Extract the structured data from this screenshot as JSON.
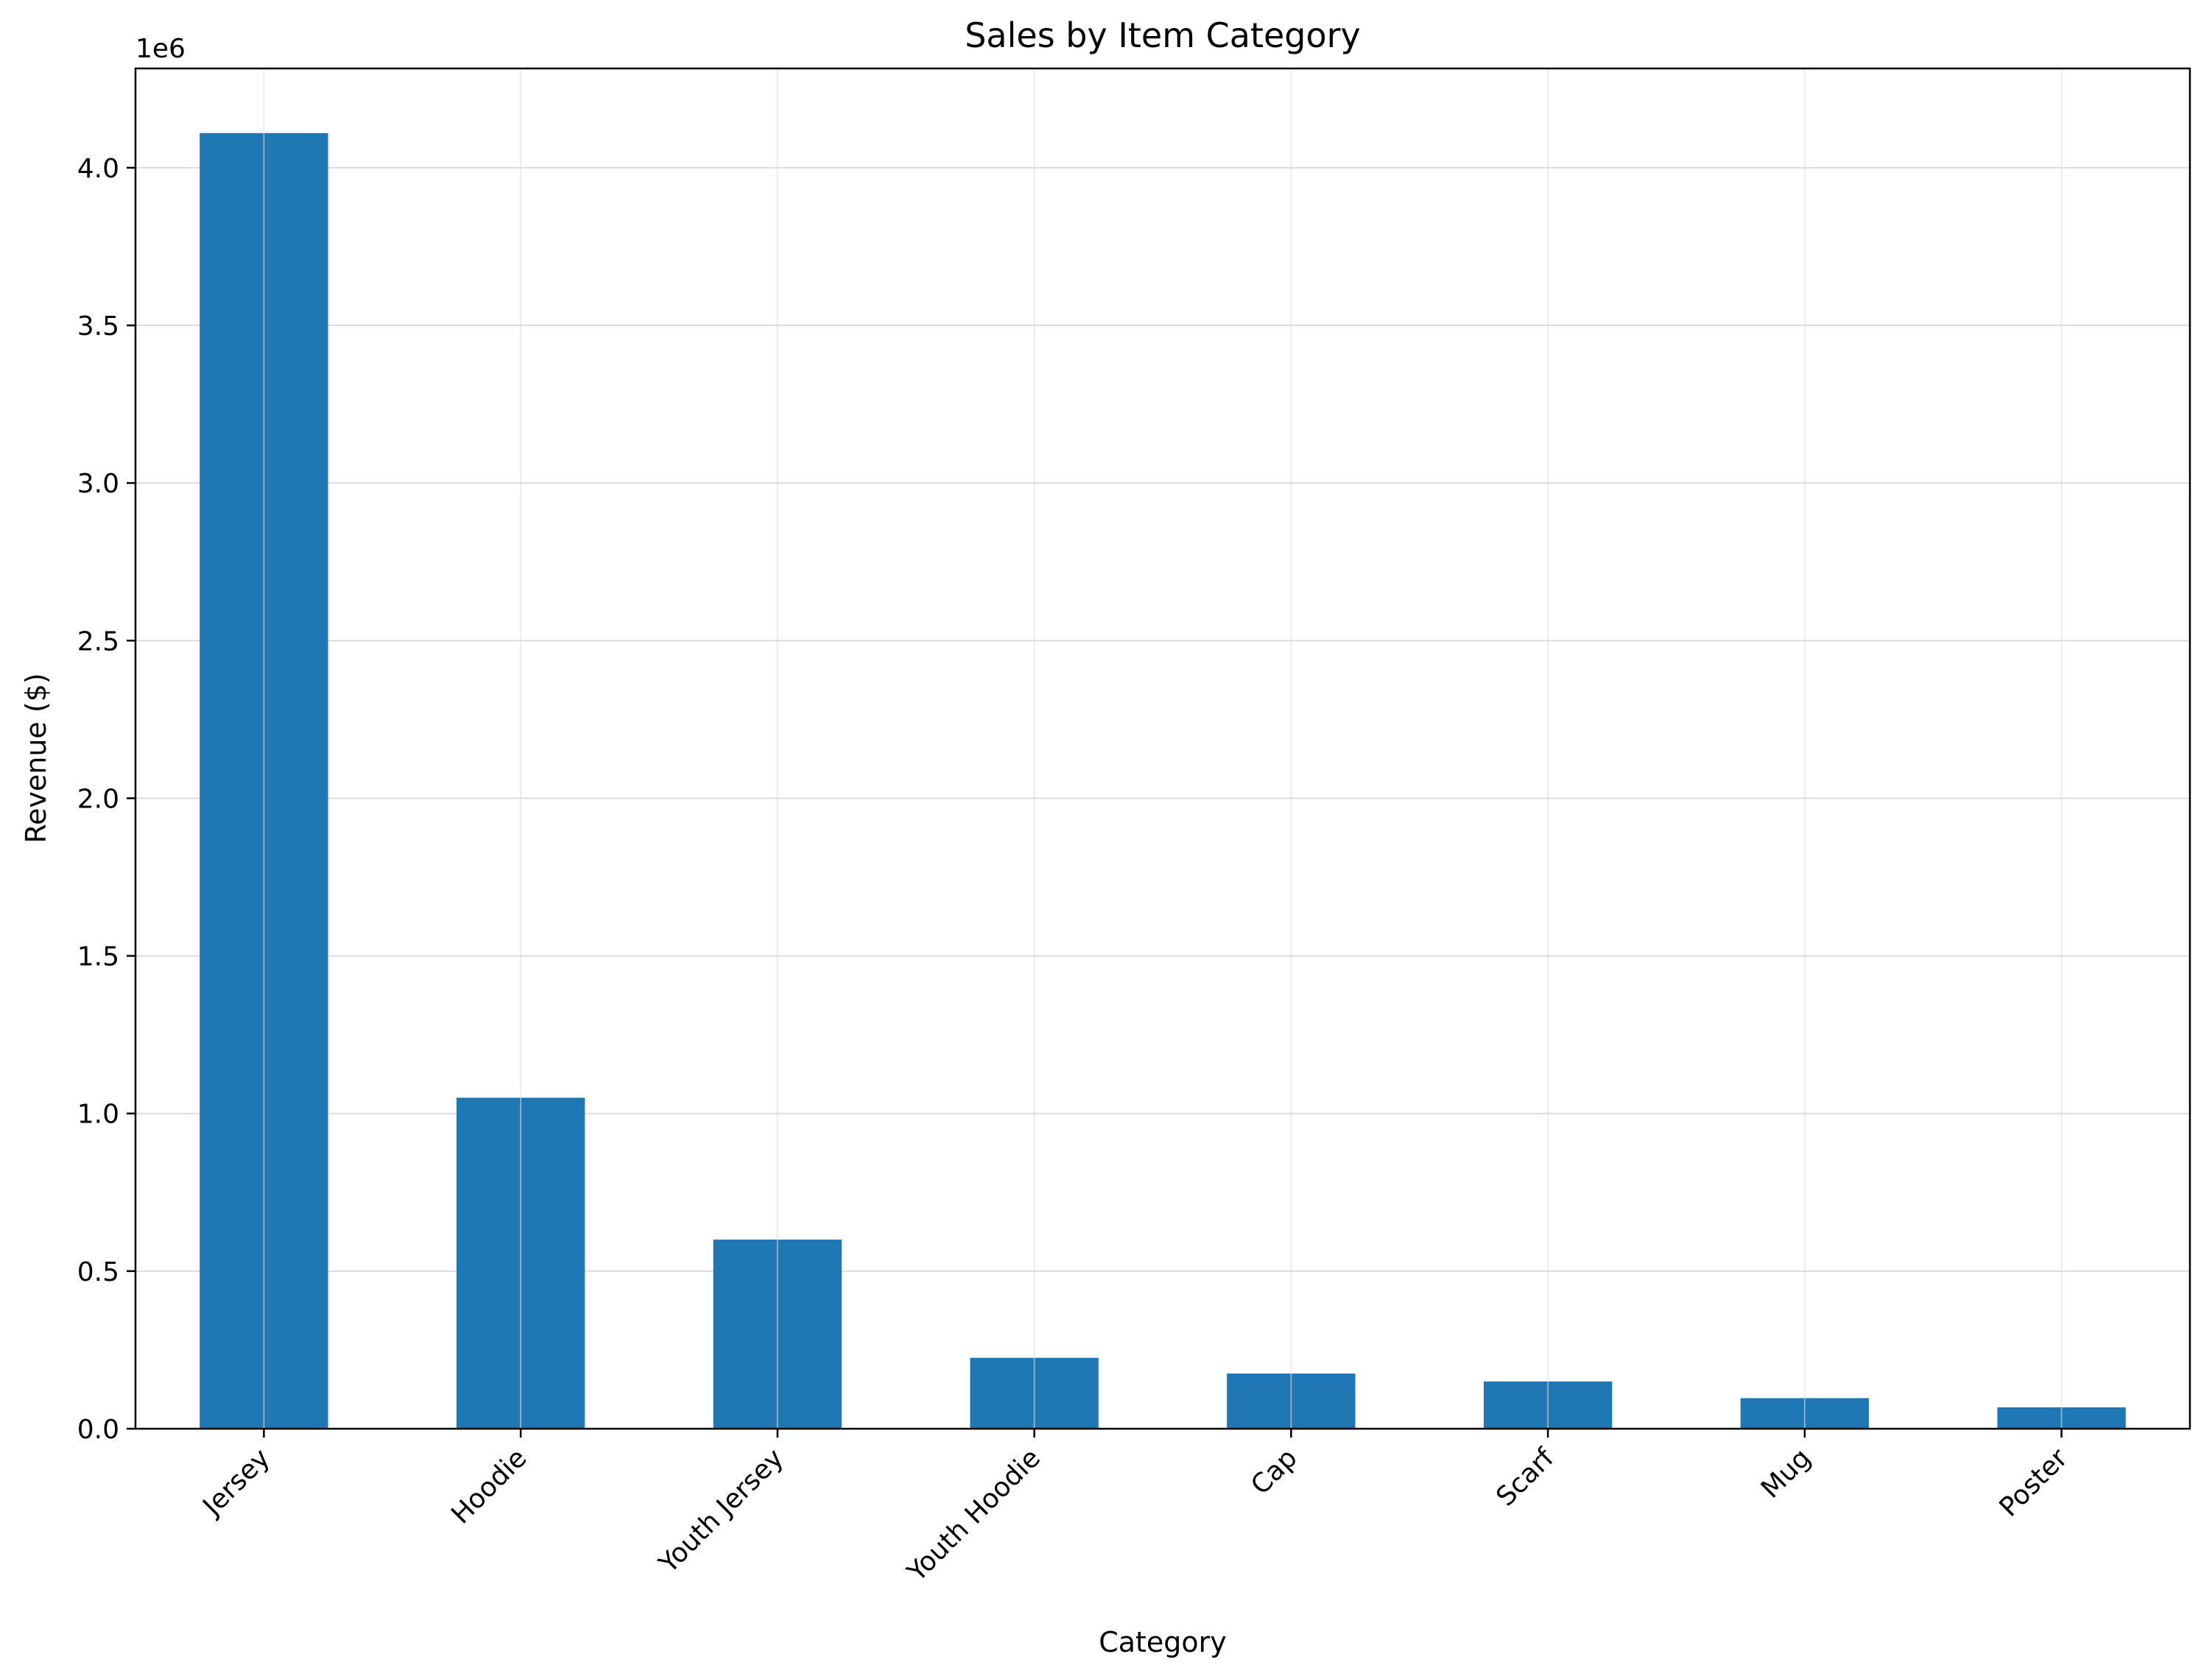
{
  "chart_data": {
    "type": "bar",
    "title": "Sales by Item Category",
    "xlabel": "Category",
    "ylabel": "Revenue ($)",
    "y_scale_label": "1e6",
    "categories": [
      "Jersey",
      "Hoodie",
      "Youth Jersey",
      "Youth Hoodie",
      "Cap",
      "Scarf",
      "Mug",
      "Poster"
    ],
    "values": [
      4110000,
      1050000,
      600000,
      225000,
      175000,
      150000,
      97000,
      68000
    ],
    "yticks": [
      0,
      500000,
      1000000,
      1500000,
      2000000,
      2500000,
      3000000,
      3500000,
      4000000
    ],
    "ytick_labels": [
      "0.0",
      "0.5",
      "1.0",
      "1.5",
      "2.0",
      "2.5",
      "3.0",
      "3.5",
      "4.0"
    ],
    "ylim": [
      0,
      4315000
    ],
    "grid": true,
    "bar_color": "#1f77b4",
    "grid_color": "#dcdcdc"
  }
}
